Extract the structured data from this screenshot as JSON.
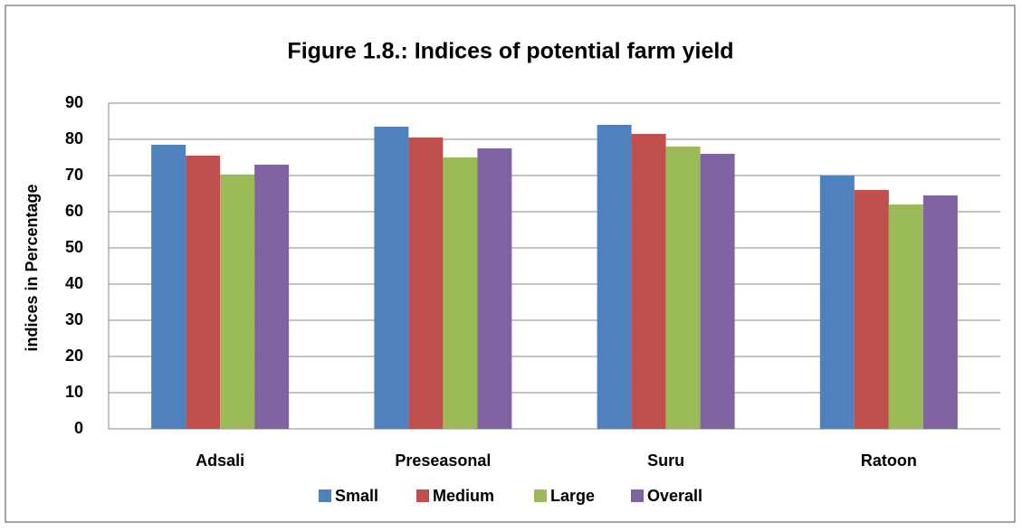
{
  "chart_data": {
    "type": "bar",
    "title": "Figure 1.8.: Indices of potential farm yield",
    "y_label": "indices in Percentage",
    "categories": [
      "Adsali",
      "Preseasonal",
      "Suru",
      "Ratoon"
    ],
    "series": [
      {
        "name": "Small",
        "color": "#4f81bd",
        "values": [
          78.5,
          83.5,
          84,
          70
        ]
      },
      {
        "name": "Medium",
        "color": "#c0504d",
        "values": [
          75.5,
          80.5,
          81.5,
          66
        ]
      },
      {
        "name": "Large",
        "color": "#9bbb59",
        "values": [
          70.3,
          75,
          78,
          62
        ]
      },
      {
        "name": "Overall",
        "color": "#8064a2",
        "values": [
          73,
          77.5,
          76,
          64.5
        ]
      }
    ],
    "ylim": [
      0,
      90
    ],
    "yticks": [
      0,
      10,
      20,
      30,
      40,
      50,
      60,
      70,
      80,
      90
    ],
    "grid": true,
    "legend": "bottom"
  }
}
